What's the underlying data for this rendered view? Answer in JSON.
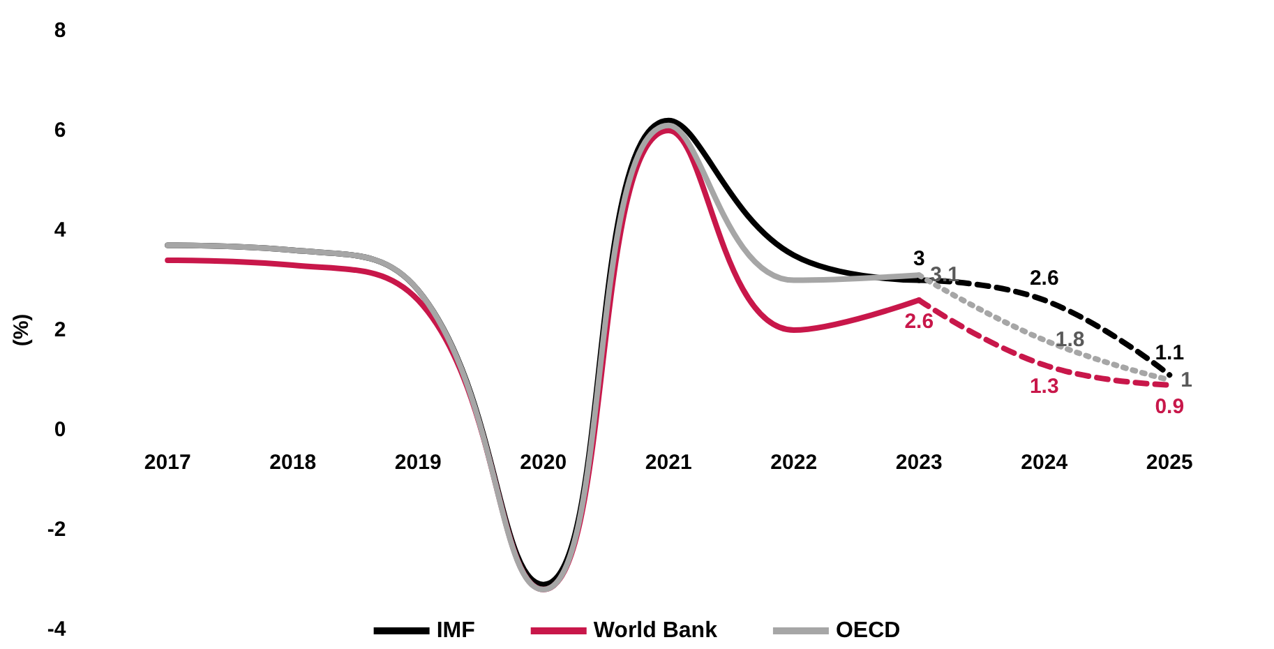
{
  "chart_data": {
    "type": "line",
    "ylabel": "(%)",
    "categories": [
      "2017",
      "2018",
      "2019",
      "2020",
      "2021",
      "2022",
      "2023",
      "2024",
      "2025"
    ],
    "ylim": [
      -4,
      8
    ],
    "yticks": [
      -4,
      -2,
      0,
      2,
      4,
      6,
      8
    ],
    "grid": false,
    "legend": "bottom",
    "marker": "none",
    "series": [
      {
        "name": "IMF",
        "color": "#000000",
        "line_style": "solid",
        "values": [
          3.7,
          3.6,
          2.8,
          -3.1,
          6.2,
          3.5,
          3.0,
          null,
          null
        ]
      },
      {
        "name": "World Bank",
        "color": "#c8174a",
        "line_style": "solid",
        "values": [
          3.4,
          3.3,
          2.6,
          -3.2,
          6.0,
          2.0,
          2.6,
          null,
          null
        ]
      },
      {
        "name": "OECD",
        "color": "#a6a6a6",
        "line_style": "solid",
        "values": [
          3.7,
          3.6,
          2.8,
          -3.2,
          6.1,
          3.0,
          3.1,
          null,
          null
        ]
      },
      {
        "color": "#000000",
        "line_style": "dashed",
        "values": [
          null,
          null,
          null,
          null,
          null,
          null,
          3,
          2.6,
          1.1
        ],
        "value_labels": [
          null,
          null,
          null,
          null,
          null,
          null,
          "3",
          "2.6",
          "1.1"
        ]
      },
      {
        "color": "#c8174a",
        "line_style": "dashed",
        "values": [
          null,
          null,
          null,
          null,
          null,
          null,
          2.6,
          1.3,
          0.9
        ],
        "value_labels": [
          null,
          null,
          null,
          null,
          null,
          null,
          "2.6",
          "1.3",
          "0.9"
        ]
      },
      {
        "color": "#a6a6a6",
        "line_style": "dotted",
        "values": [
          null,
          null,
          null,
          null,
          null,
          null,
          3.1,
          1.8,
          1
        ],
        "value_labels": [
          null,
          null,
          null,
          null,
          null,
          null,
          "3.1",
          "1.8",
          "1"
        ]
      }
    ]
  }
}
